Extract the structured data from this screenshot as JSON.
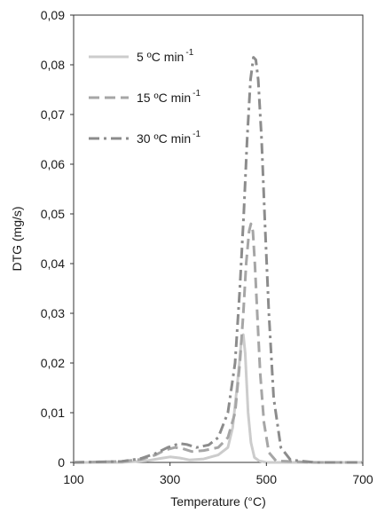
{
  "chart_data": {
    "type": "line",
    "title": "",
    "xlabel": "Temperature (°C)",
    "ylabel": "DTG (mg/s)",
    "xlim": [
      100,
      700
    ],
    "ylim": [
      0,
      0.09
    ],
    "x_ticks": [
      "100",
      "300",
      "500",
      "700"
    ],
    "x_tick_values": [
      100,
      300,
      500,
      700
    ],
    "y_ticks": [
      "0",
      "0,01",
      "0,02",
      "0,03",
      "0,04",
      "0,05",
      "0,06",
      "0,07",
      "0,08",
      "0,09"
    ],
    "y_tick_values": [
      0,
      0.01,
      0.02,
      0.03,
      0.04,
      0.05,
      0.06,
      0.07,
      0.08,
      0.09
    ],
    "grid": false,
    "legend_position": "top-left",
    "series": [
      {
        "name": "5 ºC min",
        "name_sup": "-1",
        "style": "solid",
        "color": "#cccccc",
        "x": [
          100,
          200,
          250,
          280,
          300,
          320,
          340,
          370,
          400,
          420,
          430,
          440,
          448,
          452,
          456,
          462,
          468,
          475,
          485,
          500,
          560,
          700
        ],
        "y": [
          0,
          0,
          0.0003,
          0.0008,
          0.0011,
          0.0009,
          0.0005,
          0.0007,
          0.0015,
          0.003,
          0.007,
          0.016,
          0.0245,
          0.0257,
          0.022,
          0.01,
          0.004,
          0.001,
          0.0003,
          0,
          0,
          0
        ]
      },
      {
        "name": "15 ºC min",
        "name_sup": "-1",
        "style": "dashed",
        "color": "#a6a6a6",
        "x": [
          100,
          200,
          240,
          270,
          290,
          310,
          325,
          345,
          370,
          400,
          420,
          435,
          445,
          452,
          458,
          464,
          468,
          472,
          476,
          481,
          487,
          495,
          505,
          520,
          600,
          700
        ],
        "y": [
          0,
          0.0002,
          0.0006,
          0.0015,
          0.0025,
          0.003,
          0.0028,
          0.0022,
          0.0024,
          0.003,
          0.005,
          0.01,
          0.02,
          0.03,
          0.04,
          0.0465,
          0.048,
          0.0465,
          0.04,
          0.03,
          0.018,
          0.008,
          0.002,
          0.0003,
          0,
          0
        ]
      },
      {
        "name": "30 ºC min",
        "name_sup": "-1",
        "style": "dashdot",
        "color": "#8c8c8c",
        "x": [
          100,
          200,
          240,
          270,
          295,
          320,
          335,
          355,
          380,
          400,
          420,
          435,
          445,
          453,
          460,
          467,
          473,
          478,
          483,
          490,
          497,
          505,
          515,
          530,
          550,
          600,
          700
        ],
        "y": [
          0,
          0.0002,
          0.0008,
          0.0018,
          0.003,
          0.0038,
          0.0036,
          0.003,
          0.0035,
          0.005,
          0.01,
          0.02,
          0.035,
          0.05,
          0.065,
          0.077,
          0.0815,
          0.081,
          0.077,
          0.065,
          0.048,
          0.03,
          0.013,
          0.003,
          0.0005,
          0,
          0
        ]
      }
    ]
  }
}
